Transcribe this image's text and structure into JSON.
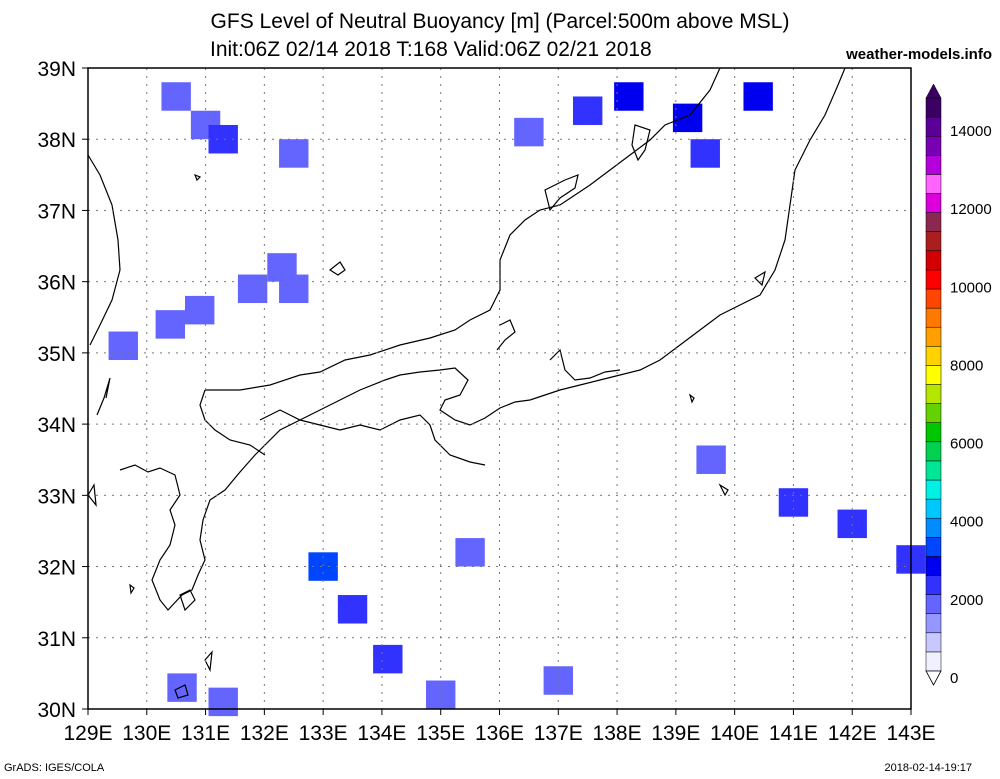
{
  "header": {
    "title_line1": "GFS Level of Neutral Buoyancy [m] (Parcel:500m above MSL)",
    "title_line2": "Init:06Z 02/14 2018 T:168 Valid:06Z 02/21 2018",
    "brand": "weather-models.info"
  },
  "footer": {
    "left": "GrADS: IGES/COLA",
    "right": "2018-02-14-19:17"
  },
  "map": {
    "lon_labels": [
      "129E",
      "130E",
      "131E",
      "132E",
      "133E",
      "134E",
      "135E",
      "136E",
      "137E",
      "138E",
      "139E",
      "140E",
      "141E",
      "142E",
      "143E"
    ],
    "lat_labels": [
      "39N",
      "38N",
      "37N",
      "36N",
      "35N",
      "34N",
      "33N",
      "32N",
      "31N",
      "30N"
    ],
    "lon_range": [
      129,
      143
    ],
    "lat_range": [
      30,
      39
    ],
    "grid": "dotted",
    "coastline_color": "#000000"
  },
  "colorbar": {
    "labels": [
      "14000",
      "12000",
      "10000",
      "8000",
      "6000",
      "4000",
      "2000",
      "0"
    ],
    "colors": [
      "#f0f0ff",
      "#c8c8ff",
      "#9696ff",
      "#6464ff",
      "#3232ff",
      "#0000f0",
      "#0046ff",
      "#008cff",
      "#00c8ff",
      "#00f0e6",
      "#00e696",
      "#00d250",
      "#00c800",
      "#64d200",
      "#b4e600",
      "#ffff00",
      "#ffd200",
      "#ffa000",
      "#ff7800",
      "#ff4600",
      "#ff0000",
      "#d20000",
      "#aa1e1e",
      "#8c2850",
      "#dc00dc",
      "#ff64ff",
      "#b400dc",
      "#7800b4",
      "#5a0096",
      "#3c0064"
    ]
  },
  "chart_data": {
    "type": "heatmap",
    "title": "GFS Level of Neutral Buoyancy [m] (Parcel:500m above MSL)",
    "units": "m",
    "value_range": [
      0,
      15000
    ],
    "cells": [
      {
        "lon": 130.5,
        "lat": 38.6,
        "value": 1800
      },
      {
        "lon": 131.0,
        "lat": 38.2,
        "value": 1900
      },
      {
        "lon": 131.3,
        "lat": 38.0,
        "value": 2200
      },
      {
        "lon": 132.5,
        "lat": 37.8,
        "value": 1600
      },
      {
        "lon": 132.3,
        "lat": 36.2,
        "value": 1900
      },
      {
        "lon": 132.5,
        "lat": 35.9,
        "value": 1700
      },
      {
        "lon": 131.8,
        "lat": 35.9,
        "value": 1600
      },
      {
        "lon": 130.9,
        "lat": 35.6,
        "value": 1500
      },
      {
        "lon": 130.4,
        "lat": 35.4,
        "value": 1500
      },
      {
        "lon": 129.6,
        "lat": 35.1,
        "value": 1700
      },
      {
        "lon": 136.5,
        "lat": 38.1,
        "value": 1900
      },
      {
        "lon": 137.5,
        "lat": 38.4,
        "value": 2300
      },
      {
        "lon": 138.2,
        "lat": 38.6,
        "value": 2700
      },
      {
        "lon": 139.2,
        "lat": 38.3,
        "value": 2600
      },
      {
        "lon": 139.5,
        "lat": 37.8,
        "value": 2100
      },
      {
        "lon": 140.4,
        "lat": 38.6,
        "value": 2800
      },
      {
        "lon": 133.0,
        "lat": 32.0,
        "value": 3000
      },
      {
        "lon": 133.5,
        "lat": 31.4,
        "value": 2300
      },
      {
        "lon": 134.1,
        "lat": 30.7,
        "value": 2000
      },
      {
        "lon": 135.0,
        "lat": 30.2,
        "value": 1800
      },
      {
        "lon": 135.5,
        "lat": 32.2,
        "value": 1600
      },
      {
        "lon": 137.0,
        "lat": 30.4,
        "value": 1500
      },
      {
        "lon": 139.6,
        "lat": 33.5,
        "value": 1700
      },
      {
        "lon": 141.0,
        "lat": 32.9,
        "value": 2100
      },
      {
        "lon": 142.0,
        "lat": 32.6,
        "value": 2000
      },
      {
        "lon": 143.0,
        "lat": 32.1,
        "value": 2400
      },
      {
        "lon": 130.6,
        "lat": 30.3,
        "value": 1800
      },
      {
        "lon": 131.3,
        "lat": 30.1,
        "value": 1700
      }
    ]
  }
}
